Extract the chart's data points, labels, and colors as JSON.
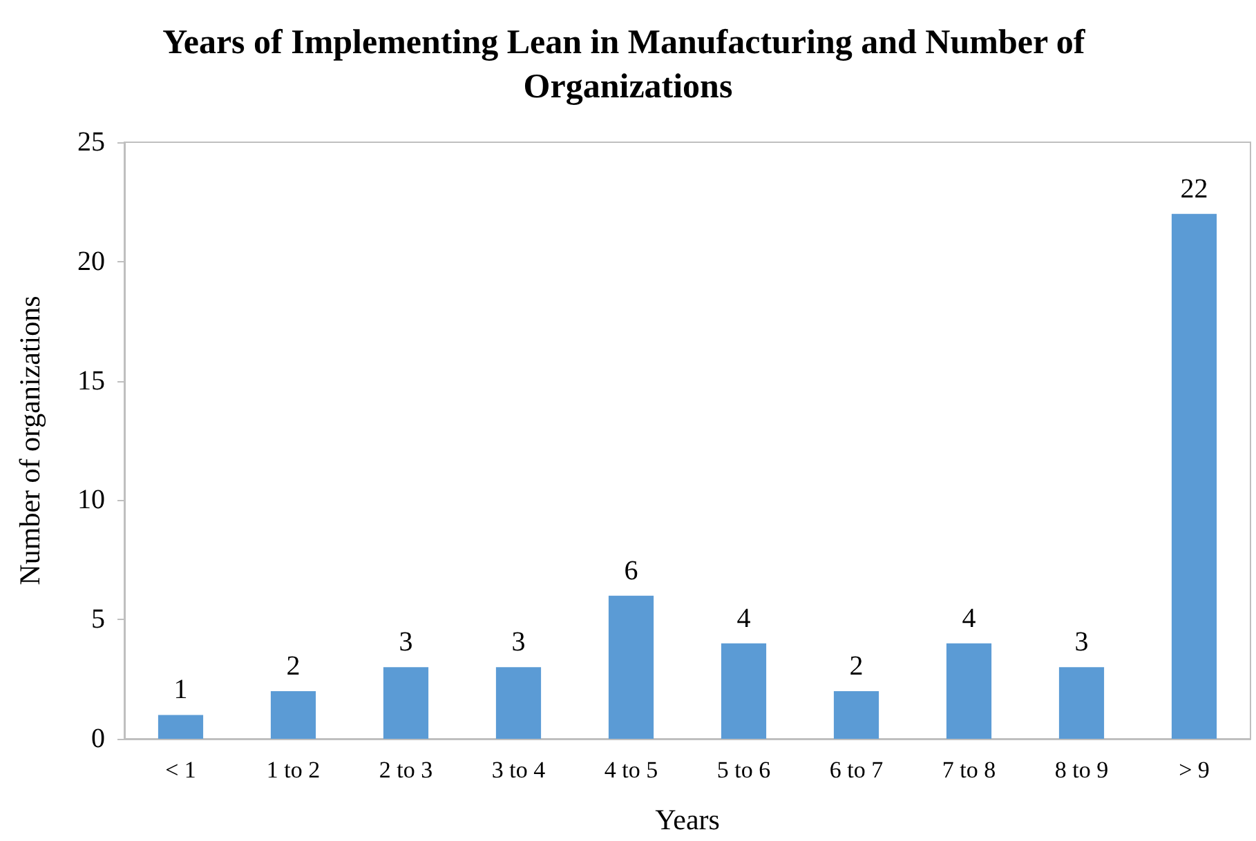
{
  "chart_data": {
    "type": "bar",
    "title": "Years of Implementing Lean in Manufacturing and Number of Organizations",
    "xlabel": "Years",
    "ylabel": "Number of organizations",
    "categories": [
      "< 1",
      "1 to 2",
      "2 to 3",
      "3 to 4",
      "4 to 5",
      "5 to 6",
      "6 to 7",
      "7 to 8",
      "8 to 9",
      "> 9"
    ],
    "values": [
      1,
      2,
      3,
      3,
      6,
      4,
      2,
      4,
      3,
      22
    ],
    "color": "#5b9bd5",
    "ylim": [
      0,
      25
    ],
    "yticks": [
      0,
      5,
      10,
      15,
      20,
      25
    ],
    "grid": false,
    "data_labels": true
  }
}
